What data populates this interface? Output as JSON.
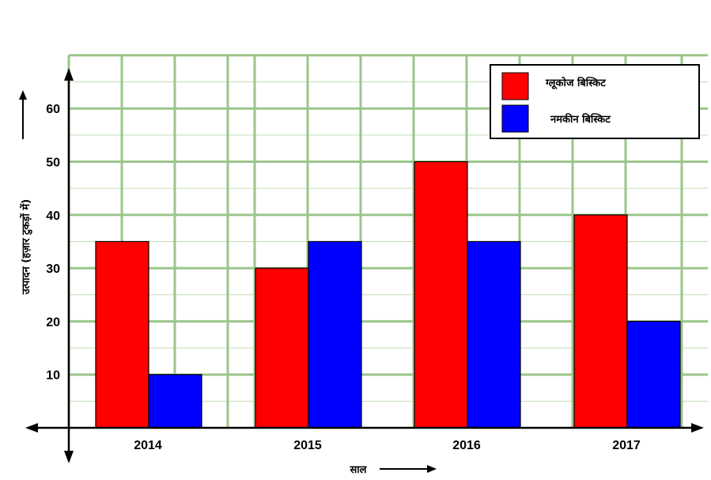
{
  "chart_data": {
    "type": "bar",
    "categories": [
      "2014",
      "2015",
      "2016",
      "2017"
    ],
    "series": [
      {
        "name": "ग्लूकोज बिस्किट",
        "values": [
          35,
          30,
          50,
          40
        ],
        "color": "#ff0000"
      },
      {
        "name": "नमकीन बिस्किट",
        "values": [
          10,
          35,
          35,
          20
        ],
        "color": "#0000ff"
      }
    ],
    "ylim": [
      0,
      70
    ],
    "yticks": [
      10,
      20,
      30,
      40,
      50,
      60
    ],
    "xlabel": "साल",
    "ylabel": "उत्पादन (हज़ार टुकड़ों में)",
    "legend_position": "top-right",
    "grid": true,
    "grid_color": "#9bc68a"
  }
}
